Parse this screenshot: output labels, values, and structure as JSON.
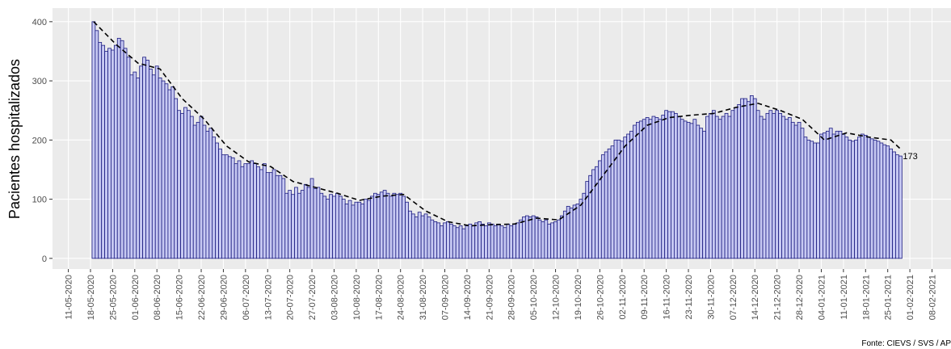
{
  "chart_data": {
    "type": "bar",
    "y_label": "Pacientes hospitalizados",
    "source": "Fonte: CIEVS / SVS / AP",
    "color": "#c7c9f2",
    "edge_color": "#1a1a80",
    "trend_color": "#000000",
    "grid": true,
    "xlim": [
      "06-05-2020",
      "14-02-2021"
    ],
    "ylim": [
      -18,
      423
    ],
    "yticks": [
      0,
      100,
      200,
      300,
      400
    ],
    "xticks": [
      "11-05-2020",
      "18-05-2020",
      "25-05-2020",
      "01-06-2020",
      "08-06-2020",
      "15-06-2020",
      "22-06-2020",
      "29-06-2020",
      "06-07-2020",
      "13-07-2020",
      "20-07-2020",
      "27-07-2020",
      "03-08-2020",
      "10-08-2020",
      "17-08-2020",
      "24-08-2020",
      "31-08-2020",
      "07-09-2020",
      "14-09-2020",
      "21-09-2020",
      "28-09-2020",
      "05-10-2020",
      "12-10-2020",
      "19-10-2020",
      "26-10-2020",
      "02-11-2020",
      "09-11-2020",
      "16-11-2020",
      "23-11-2020",
      "30-11-2020",
      "07-12-2020",
      "14-12-2020",
      "21-12-2020",
      "28-12-2020",
      "04-01-2021",
      "11-01-2021",
      "18-01-2021",
      "25-01-2021",
      "01-02-2021",
      "08-02-2021"
    ],
    "x": [
      "19-05-2020",
      "20-05-2020",
      "21-05-2020",
      "22-05-2020",
      "23-05-2020",
      "24-05-2020",
      "25-05-2020",
      "26-05-2020",
      "27-05-2020",
      "28-05-2020",
      "29-05-2020",
      "30-05-2020",
      "31-05-2020",
      "01-06-2020",
      "02-06-2020",
      "03-06-2020",
      "04-06-2020",
      "05-06-2020",
      "06-06-2020",
      "07-06-2020",
      "08-06-2020",
      "09-06-2020",
      "10-06-2020",
      "11-06-2020",
      "12-06-2020",
      "13-06-2020",
      "14-06-2020",
      "15-06-2020",
      "16-06-2020",
      "17-06-2020",
      "18-06-2020",
      "19-06-2020",
      "20-06-2020",
      "21-06-2020",
      "22-06-2020",
      "23-06-2020",
      "24-06-2020",
      "25-06-2020",
      "26-06-2020",
      "27-06-2020",
      "28-06-2020",
      "29-06-2020",
      "30-06-2020",
      "01-07-2020",
      "02-07-2020",
      "03-07-2020",
      "04-07-2020",
      "05-07-2020",
      "06-07-2020",
      "07-07-2020",
      "08-07-2020",
      "09-07-2020",
      "10-07-2020",
      "11-07-2020",
      "12-07-2020",
      "13-07-2020",
      "14-07-2020",
      "15-07-2020",
      "16-07-2020",
      "17-07-2020",
      "18-07-2020",
      "19-07-2020",
      "20-07-2020",
      "21-07-2020",
      "22-07-2020",
      "23-07-2020",
      "24-07-2020",
      "25-07-2020",
      "26-07-2020",
      "27-07-2020",
      "28-07-2020",
      "29-07-2020",
      "30-07-2020",
      "31-07-2020",
      "01-08-2020",
      "02-08-2020",
      "03-08-2020",
      "04-08-2020",
      "05-08-2020",
      "06-08-2020",
      "07-08-2020",
      "08-08-2020",
      "09-08-2020",
      "10-08-2020",
      "11-08-2020",
      "12-08-2020",
      "13-08-2020",
      "14-08-2020",
      "15-08-2020",
      "16-08-2020",
      "17-08-2020",
      "18-08-2020",
      "19-08-2020",
      "20-08-2020",
      "21-08-2020",
      "22-08-2020",
      "23-08-2020",
      "24-08-2020",
      "25-08-2020",
      "26-08-2020",
      "27-08-2020",
      "28-08-2020",
      "29-08-2020",
      "30-08-2020",
      "31-08-2020",
      "01-09-2020",
      "02-09-2020",
      "03-09-2020",
      "04-09-2020",
      "05-09-2020",
      "06-09-2020",
      "07-09-2020",
      "08-09-2020",
      "09-09-2020",
      "10-09-2020",
      "11-09-2020",
      "12-09-2020",
      "13-09-2020",
      "14-09-2020",
      "15-09-2020",
      "16-09-2020",
      "17-09-2020",
      "18-09-2020",
      "19-09-2020",
      "20-09-2020",
      "21-09-2020",
      "22-09-2020",
      "23-09-2020",
      "24-09-2020",
      "25-09-2020",
      "26-09-2020",
      "27-09-2020",
      "28-09-2020",
      "29-09-2020",
      "30-09-2020",
      "01-10-2020",
      "02-10-2020",
      "03-10-2020",
      "04-10-2020",
      "05-10-2020",
      "06-10-2020",
      "07-10-2020",
      "08-10-2020",
      "09-10-2020",
      "10-10-2020",
      "11-10-2020",
      "12-10-2020",
      "13-10-2020",
      "14-10-2020",
      "15-10-2020",
      "16-10-2020",
      "17-10-2020",
      "18-10-2020",
      "19-10-2020",
      "20-10-2020",
      "21-10-2020",
      "22-10-2020",
      "23-10-2020",
      "24-10-2020",
      "25-10-2020",
      "26-10-2020",
      "27-10-2020",
      "28-10-2020",
      "29-10-2020",
      "30-10-2020",
      "31-10-2020",
      "01-11-2020",
      "02-11-2020",
      "03-11-2020",
      "04-11-2020",
      "05-11-2020",
      "06-11-2020",
      "07-11-2020",
      "08-11-2020",
      "09-11-2020",
      "10-11-2020",
      "11-11-2020",
      "12-11-2020",
      "13-11-2020",
      "14-11-2020",
      "15-11-2020",
      "16-11-2020",
      "17-11-2020",
      "18-11-2020",
      "19-11-2020",
      "20-11-2020",
      "21-11-2020",
      "22-11-2020",
      "23-11-2020",
      "24-11-2020",
      "25-11-2020",
      "26-11-2020",
      "27-11-2020",
      "28-11-2020",
      "29-11-2020",
      "30-11-2020",
      "01-12-2020",
      "02-12-2020",
      "03-12-2020",
      "04-12-2020",
      "05-12-2020",
      "06-12-2020",
      "07-12-2020",
      "08-12-2020",
      "09-12-2020",
      "10-12-2020",
      "11-12-2020",
      "12-12-2020",
      "13-12-2020",
      "14-12-2020",
      "15-12-2020",
      "16-12-2020",
      "17-12-2020",
      "18-12-2020",
      "19-12-2020",
      "20-12-2020",
      "21-12-2020",
      "22-12-2020",
      "23-12-2020",
      "24-12-2020",
      "25-12-2020",
      "26-12-2020",
      "27-12-2020",
      "28-12-2020",
      "29-12-2020",
      "30-12-2020",
      "31-12-2020",
      "01-01-2021",
      "02-01-2021",
      "03-01-2021",
      "04-01-2021",
      "05-01-2021",
      "06-01-2021",
      "07-01-2021",
      "08-01-2021",
      "09-01-2021",
      "10-01-2021",
      "11-01-2021",
      "12-01-2021",
      "13-01-2021",
      "14-01-2021",
      "15-01-2021",
      "16-01-2021",
      "17-01-2021",
      "18-01-2021",
      "19-01-2021",
      "20-01-2021",
      "21-01-2021",
      "22-01-2021",
      "23-01-2021",
      "24-01-2021",
      "25-01-2021",
      "26-01-2021",
      "27-01-2021",
      "28-01-2021",
      "29-01-2021"
    ],
    "values": [
      400,
      385,
      365,
      360,
      350,
      355,
      352,
      360,
      372,
      368,
      355,
      340,
      310,
      315,
      305,
      325,
      340,
      335,
      320,
      310,
      325,
      305,
      300,
      295,
      285,
      290,
      270,
      250,
      245,
      255,
      250,
      240,
      225,
      230,
      240,
      225,
      215,
      220,
      205,
      195,
      185,
      175,
      175,
      172,
      170,
      160,
      165,
      155,
      160,
      160,
      165,
      160,
      155,
      150,
      160,
      145,
      145,
      150,
      140,
      140,
      135,
      110,
      115,
      108,
      120,
      110,
      115,
      125,
      120,
      135,
      118,
      120,
      110,
      105,
      100,
      108,
      105,
      110,
      105,
      100,
      92,
      98,
      90,
      95,
      95,
      92,
      100,
      98,
      105,
      110,
      108,
      112,
      115,
      110,
      105,
      110,
      108,
      110,
      105,
      95,
      80,
      75,
      70,
      78,
      72,
      75,
      70,
      65,
      62,
      60,
      55,
      60,
      62,
      58,
      55,
      52,
      55,
      50,
      55,
      58,
      55,
      60,
      62,
      58,
      55,
      60,
      58,
      55,
      58,
      55,
      52,
      58,
      55,
      58,
      60,
      65,
      70,
      72,
      70,
      72,
      70,
      65,
      62,
      65,
      58,
      60,
      62,
      65,
      72,
      80,
      88,
      85,
      90,
      92,
      100,
      110,
      130,
      140,
      150,
      155,
      165,
      175,
      180,
      185,
      190,
      200,
      200,
      198,
      205,
      210,
      215,
      225,
      230,
      232,
      235,
      238,
      235,
      240,
      238,
      235,
      242,
      250,
      248,
      248,
      245,
      240,
      235,
      232,
      230,
      228,
      235,
      225,
      220,
      215,
      240,
      245,
      250,
      240,
      235,
      240,
      245,
      240,
      250,
      255,
      260,
      270,
      270,
      265,
      275,
      270,
      250,
      240,
      235,
      245,
      250,
      245,
      250,
      245,
      240,
      235,
      238,
      230,
      225,
      230,
      220,
      205,
      200,
      198,
      195,
      195,
      210,
      212,
      215,
      220,
      210,
      215,
      215,
      210,
      205,
      200,
      198,
      200,
      205,
      210,
      208,
      205,
      202,
      200,
      198,
      195,
      192,
      190,
      185,
      180,
      175,
      173
    ],
    "trend": {
      "x": [
        "19-05-2020",
        "26-05-2020",
        "02-06-2020",
        "09-06-2020",
        "16-06-2020",
        "23-06-2020",
        "30-06-2020",
        "07-07-2020",
        "14-07-2020",
        "21-07-2020",
        "28-07-2020",
        "04-08-2020",
        "11-08-2020",
        "18-08-2020",
        "25-08-2020",
        "01-09-2020",
        "08-09-2020",
        "15-09-2020",
        "22-09-2020",
        "29-09-2020",
        "06-10-2020",
        "13-10-2020",
        "20-10-2020",
        "27-10-2020",
        "03-11-2020",
        "10-11-2020",
        "17-11-2020",
        "24-11-2020",
        "01-12-2020",
        "08-12-2020",
        "15-12-2020",
        "22-12-2020",
        "29-12-2020",
        "05-01-2021",
        "12-01-2021",
        "19-01-2021",
        "26-01-2021",
        "29-01-2021"
      ],
      "values": [
        400,
        362,
        330,
        320,
        270,
        235,
        190,
        163,
        155,
        130,
        120,
        110,
        98,
        105,
        108,
        80,
        62,
        55,
        57,
        58,
        68,
        65,
        90,
        140,
        190,
        225,
        238,
        242,
        245,
        255,
        262,
        250,
        235,
        200,
        212,
        205,
        200,
        185
      ]
    }
  }
}
